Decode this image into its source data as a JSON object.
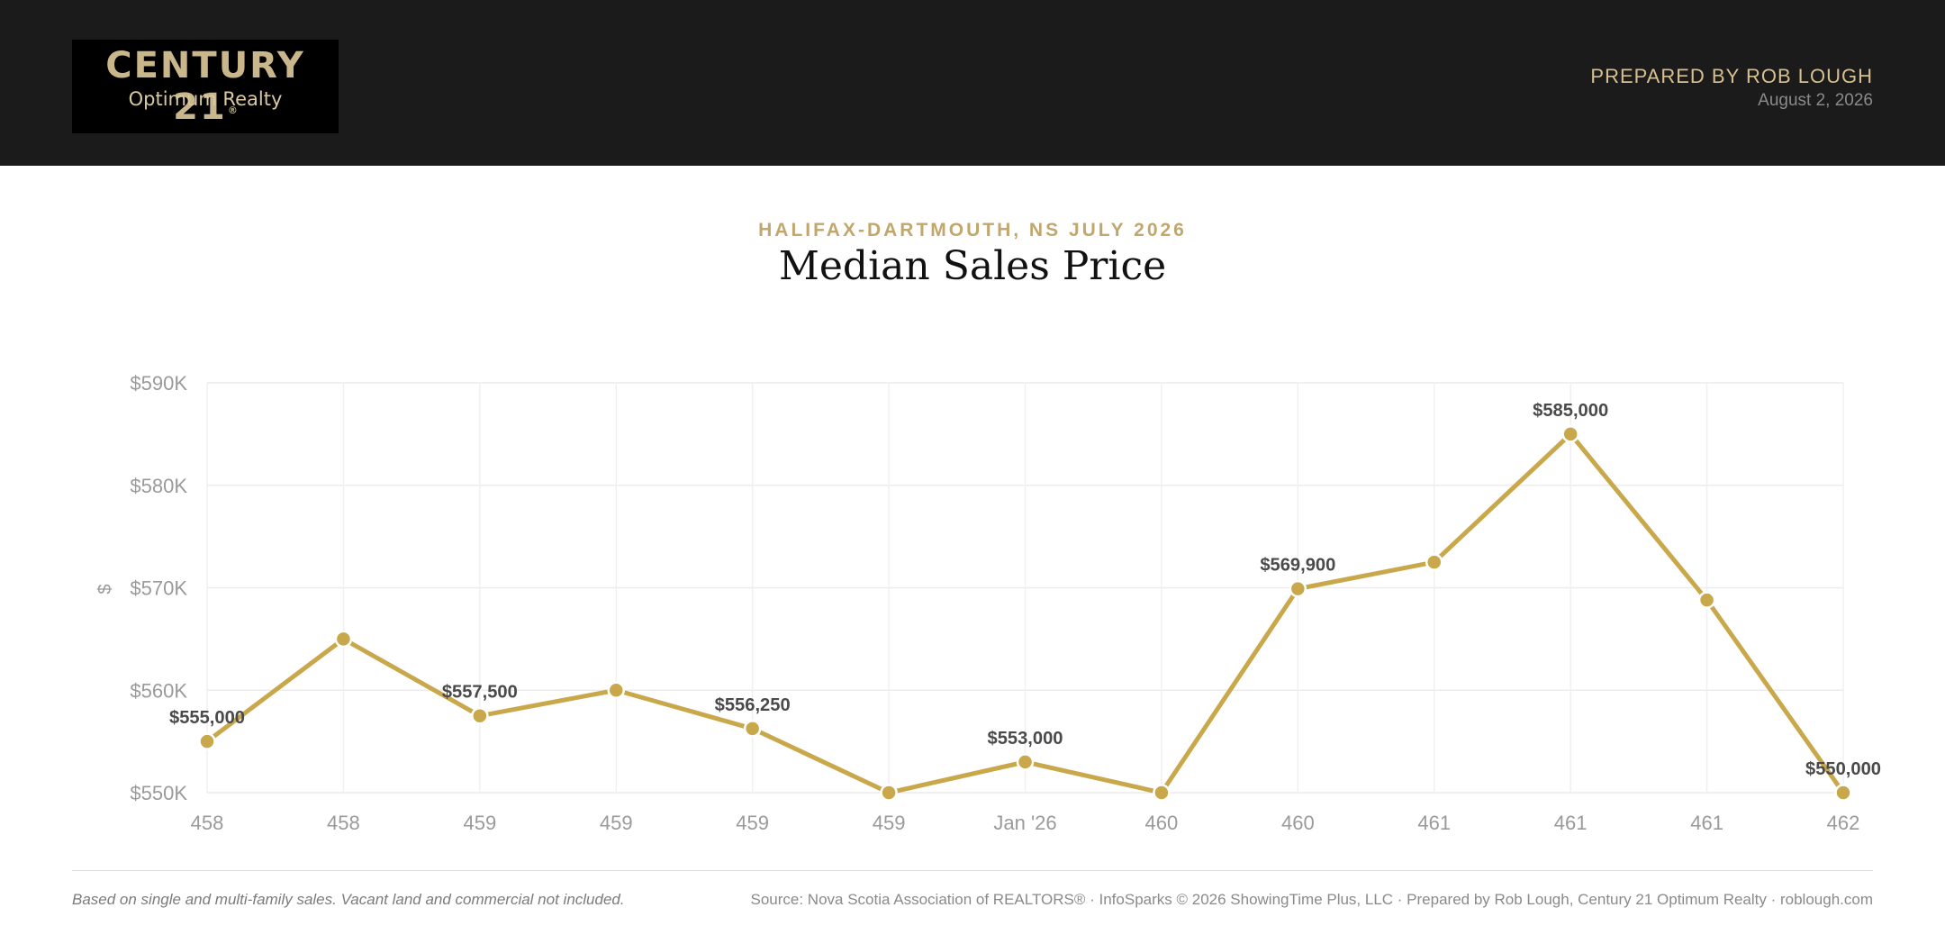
{
  "header": {
    "logo_brand": "CENTURY 21",
    "logo_registered": "®",
    "logo_office": "Optimum Realty",
    "prepared_by": "PREPARED BY ROB LOUGH",
    "date": "August 2, 2026"
  },
  "colors": {
    "accent": "#c9a84c",
    "header_bg": "#1b1b1b",
    "gold_text": "#c2a76d"
  },
  "chart_data": {
    "type": "line",
    "subtitle": "HALIFAX-DARTMOUTH, NS JULY 2026",
    "title": "Median Sales Price",
    "ylabel": "$",
    "xlabel": "",
    "ylim": [
      550000,
      590000
    ],
    "yticks": [
      550000,
      560000,
      570000,
      580000,
      590000
    ],
    "ytick_labels": [
      "$550K",
      "$560K",
      "$570K",
      "$580K",
      "$590K"
    ],
    "categories": [
      "458",
      "458",
      "459",
      "459",
      "459",
      "459",
      "Jan '26",
      "460",
      "460",
      "461",
      "461",
      "461",
      "462"
    ],
    "grid": true,
    "series": [
      {
        "values": [
          555000,
          565000,
          557500,
          560000,
          556250,
          550000,
          553000,
          550000,
          569900,
          572500,
          585000,
          568800,
          550000
        ],
        "data_labels": [
          "$555,000",
          null,
          "$557,500",
          null,
          "$556,250",
          null,
          "$553,000",
          null,
          "$569,900",
          null,
          "$585,000",
          null,
          "$550,000"
        ]
      }
    ]
  },
  "footer": {
    "note": "Based on single and multi-family sales. Vacant land and commercial not included.",
    "source": "Source: Nova Scotia Association of REALTORS® · InfoSparks © 2026 ShowingTime Plus, LLC · Prepared by Rob Lough, Century 21 Optimum Realty · roblough.com"
  }
}
